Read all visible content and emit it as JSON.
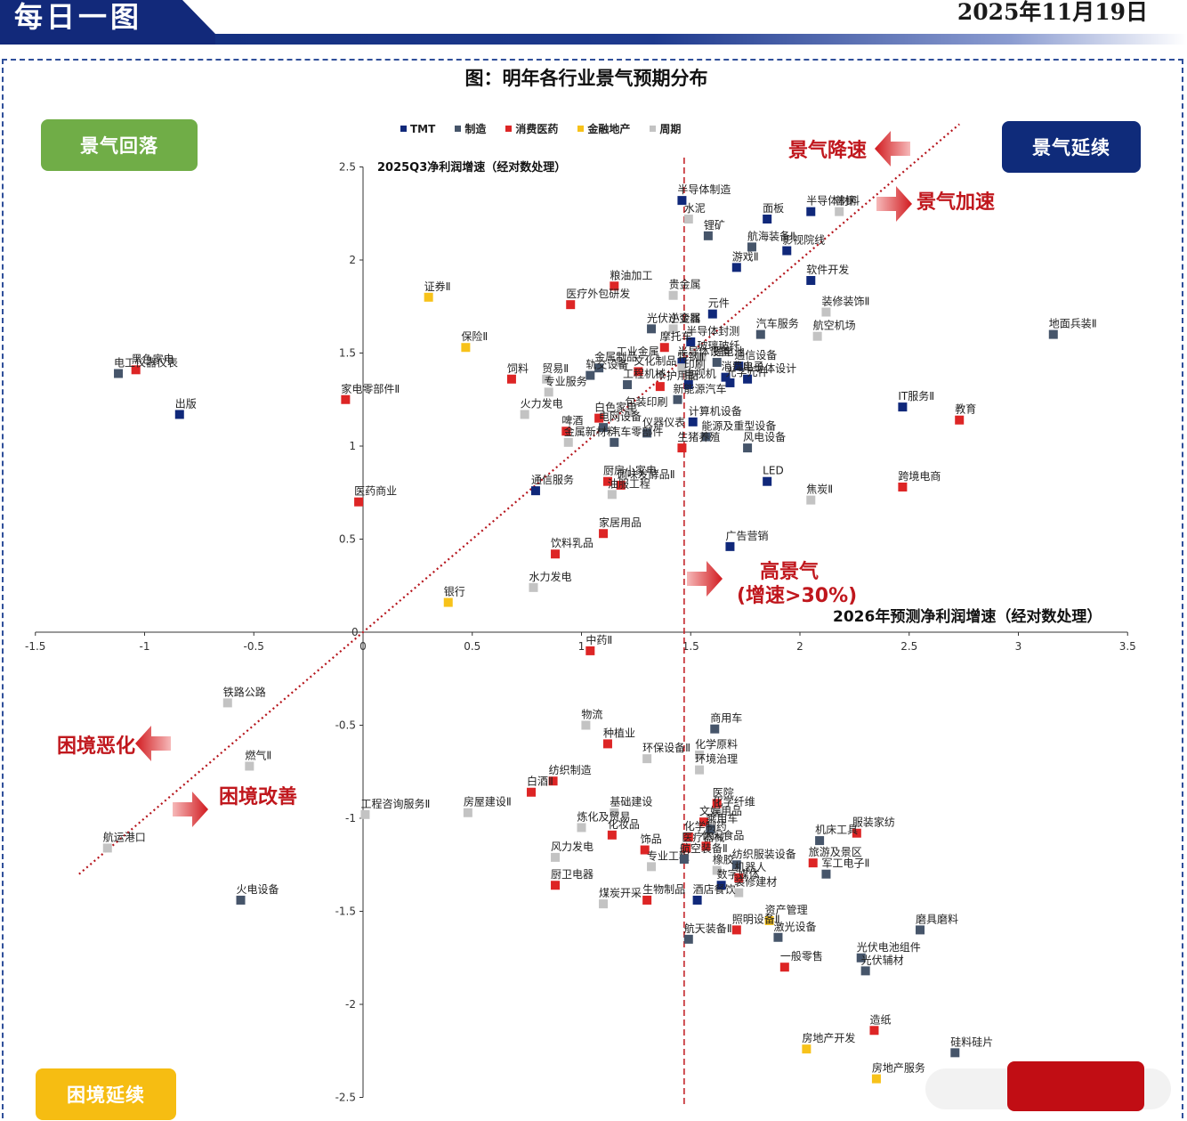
{
  "header": {
    "title": "每日一图",
    "date": "2025年11月19日"
  },
  "quadrants": {
    "top_left": "景气回落",
    "top_right": "景气延续",
    "bottom_left": "困境延续"
  },
  "annotations": {
    "slowdown": "景气降速",
    "accelerate": "景气加速",
    "high_line1": "高景气",
    "high_line2": "(增速>30%)",
    "worsen": "困境恶化",
    "improve": "困境改善"
  },
  "colors": {
    "TMT": "#10287a",
    "制造": "#46556a",
    "消费医药": "#dd2525",
    "金融地产": "#f7c21a",
    "周期": "#c3c3c3"
  },
  "chart_data": {
    "type": "scatter",
    "title": "图：明年各行业景气预期分布",
    "xlabel": "2026年预测净利润增速（经对数处理）",
    "ylabel": "2025Q3净利润增速（经对数处理）",
    "xlim": [
      -1.5,
      3.5
    ],
    "ylim": [
      -2.5,
      2.5
    ],
    "x_ticks": [
      -1.5,
      -1,
      -0.5,
      0,
      0.5,
      1,
      1.5,
      2,
      2.5,
      3,
      3.5
    ],
    "x_tick_labels": [
      "-1.5",
      "-1",
      "-0.5",
      "0",
      "0.5",
      "1",
      "1.5",
      "2",
      "2.5",
      "3",
      "3.5"
    ],
    "y_ticks": [
      -2.5,
      -2,
      -1.5,
      -1,
      -0.5,
      0.5,
      1,
      1.5,
      2,
      2.5
    ],
    "y_tick_labels": [
      "-2.5",
      "-2",
      "-1.5",
      "-1",
      "-0.5",
      "0.5",
      "1",
      "1.5",
      "2",
      "2.5"
    ],
    "origin_label": "0",
    "threshold_x": 1.47,
    "diagonal": true,
    "legend_position": "top-center",
    "legend": [
      "TMT",
      "制造",
      "消费医药",
      "金融地产",
      "周期"
    ],
    "points": [
      {
        "name": "半导体制造",
        "x": 1.46,
        "y": 2.32,
        "group": "TMT"
      },
      {
        "name": "水泥",
        "x": 1.49,
        "y": 2.22,
        "group": "周期"
      },
      {
        "name": "面板",
        "x": 1.85,
        "y": 2.22,
        "group": "TMT"
      },
      {
        "name": "半导体材料",
        "x": 2.05,
        "y": 2.26,
        "group": "TMT"
      },
      {
        "name": "普钢",
        "x": 2.18,
        "y": 2.26,
        "group": "周期"
      },
      {
        "name": "锂矿",
        "x": 1.58,
        "y": 2.13,
        "group": "制造"
      },
      {
        "name": "航海装备Ⅱ",
        "x": 1.78,
        "y": 2.07,
        "group": "制造"
      },
      {
        "name": "影视院线",
        "x": 1.94,
        "y": 2.05,
        "group": "TMT"
      },
      {
        "name": "游戏Ⅱ",
        "x": 1.71,
        "y": 1.96,
        "group": "TMT"
      },
      {
        "name": "软件开发",
        "x": 2.05,
        "y": 1.89,
        "group": "TMT"
      },
      {
        "name": "证券Ⅱ",
        "x": 0.3,
        "y": 1.8,
        "group": "金融地产"
      },
      {
        "name": "粮油加工",
        "x": 1.15,
        "y": 1.86,
        "group": "消费医药"
      },
      {
        "name": "医疗外包研发",
        "x": 0.95,
        "y": 1.76,
        "group": "消费医药"
      },
      {
        "name": "贵金属",
        "x": 1.42,
        "y": 1.81,
        "group": "周期"
      },
      {
        "name": "元件",
        "x": 1.6,
        "y": 1.71,
        "group": "TMT"
      },
      {
        "name": "装修装饰Ⅱ",
        "x": 2.12,
        "y": 1.72,
        "group": "周期"
      },
      {
        "name": "光伏逆变器",
        "x": 1.32,
        "y": 1.63,
        "group": "制造"
      },
      {
        "name": "小金属",
        "x": 1.42,
        "y": 1.63,
        "group": "周期"
      },
      {
        "name": "汽车服务",
        "x": 1.82,
        "y": 1.6,
        "group": "制造"
      },
      {
        "name": "地面兵装Ⅱ",
        "x": 3.16,
        "y": 1.6,
        "group": "制造"
      },
      {
        "name": "航空机场",
        "x": 2.08,
        "y": 1.59,
        "group": "周期"
      },
      {
        "name": "半导体封测",
        "x": 1.5,
        "y": 1.56,
        "group": "TMT"
      },
      {
        "name": "摩托车",
        "x": 1.38,
        "y": 1.53,
        "group": "消费医药"
      },
      {
        "name": "保险Ⅱ",
        "x": 0.47,
        "y": 1.53,
        "group": "金融地产"
      },
      {
        "name": "玻璃玻纤",
        "x": 1.55,
        "y": 1.48,
        "group": "周期"
      },
      {
        "name": "工业金属",
        "x": 1.18,
        "y": 1.45,
        "group": "周期"
      },
      {
        "name": "半导体设备",
        "x": 1.46,
        "y": 1.45,
        "group": "TMT"
      },
      {
        "name": "锂电池",
        "x": 1.62,
        "y": 1.45,
        "group": "制造"
      },
      {
        "name": "黑色家电",
        "x": -1.04,
        "y": 1.41,
        "group": "消费医药"
      },
      {
        "name": "电工仪器仪表",
        "x": -1.12,
        "y": 1.39,
        "group": "制造"
      },
      {
        "name": "金属制品",
        "x": 1.08,
        "y": 1.42,
        "group": "制造"
      },
      {
        "name": "通信设备",
        "x": 1.72,
        "y": 1.43,
        "group": "TMT"
      },
      {
        "name": "文化制品",
        "x": 1.26,
        "y": 1.4,
        "group": "消费医药"
      },
      {
        "name": "特钢Ⅱ",
        "x": 1.46,
        "y": 1.42,
        "group": "周期"
      },
      {
        "name": "贸易Ⅱ",
        "x": 0.84,
        "y": 1.36,
        "group": "周期"
      },
      {
        "name": "饲料",
        "x": 0.68,
        "y": 1.36,
        "group": "消费医药"
      },
      {
        "name": "轨交设备",
        "x": 1.04,
        "y": 1.38,
        "group": "制造"
      },
      {
        "name": "印刷",
        "x": 1.49,
        "y": 1.38,
        "group": "周期"
      },
      {
        "name": "消费电子",
        "x": 1.66,
        "y": 1.37,
        "group": "TMT"
      },
      {
        "name": "半导体设计",
        "x": 1.76,
        "y": 1.36,
        "group": "TMT"
      },
      {
        "name": "光学元件",
        "x": 1.68,
        "y": 1.34,
        "group": "TMT"
      },
      {
        "name": "工程机械",
        "x": 1.21,
        "y": 1.33,
        "group": "制造"
      },
      {
        "name": "个护用品",
        "x": 1.36,
        "y": 1.32,
        "group": "消费医药"
      },
      {
        "name": "家电零部件Ⅱ",
        "x": -0.08,
        "y": 1.25,
        "group": "消费医药"
      },
      {
        "name": "专业服务",
        "x": 0.85,
        "y": 1.29,
        "group": "周期"
      },
      {
        "name": "电视机",
        "x": 1.49,
        "y": 1.33,
        "group": "TMT"
      },
      {
        "name": "IT服务Ⅱ",
        "x": 2.47,
        "y": 1.21,
        "group": "TMT"
      },
      {
        "name": "包装印刷",
        "x": 1.22,
        "y": 1.18,
        "group": "周期"
      },
      {
        "name": "新能源汽车",
        "x": 1.44,
        "y": 1.25,
        "group": "制造"
      },
      {
        "name": "出版",
        "x": -0.84,
        "y": 1.17,
        "group": "TMT"
      },
      {
        "name": "火力发电",
        "x": 0.74,
        "y": 1.17,
        "group": "周期"
      },
      {
        "name": "白色家电",
        "x": 1.08,
        "y": 1.15,
        "group": "消费医药"
      },
      {
        "name": "教育",
        "x": 2.73,
        "y": 1.14,
        "group": "消费医药"
      },
      {
        "name": "啤酒",
        "x": 0.93,
        "y": 1.08,
        "group": "消费医药"
      },
      {
        "name": "电网设备",
        "x": 1.1,
        "y": 1.1,
        "group": "制造"
      },
      {
        "name": "仪器仪表",
        "x": 1.3,
        "y": 1.07,
        "group": "制造"
      },
      {
        "name": "计算机设备",
        "x": 1.51,
        "y": 1.13,
        "group": "TMT"
      },
      {
        "name": "能源及重型设备",
        "x": 1.57,
        "y": 1.05,
        "group": "制造"
      },
      {
        "name": "汽车零部件",
        "x": 1.15,
        "y": 1.02,
        "group": "制造"
      },
      {
        "name": "金属新材料",
        "x": 0.94,
        "y": 1.02,
        "group": "周期"
      },
      {
        "name": "风电设备",
        "x": 1.76,
        "y": 0.99,
        "group": "制造"
      },
      {
        "name": "生猪养殖",
        "x": 1.46,
        "y": 0.99,
        "group": "消费医药"
      },
      {
        "name": "LED",
        "x": 1.85,
        "y": 0.81,
        "group": "TMT"
      },
      {
        "name": "跨境电商",
        "x": 2.47,
        "y": 0.78,
        "group": "消费医药"
      },
      {
        "name": "厨房小家电",
        "x": 1.12,
        "y": 0.81,
        "group": "消费医药"
      },
      {
        "name": "调味发酵品Ⅱ",
        "x": 1.18,
        "y": 0.79,
        "group": "消费医药"
      },
      {
        "name": "医药商业",
        "x": -0.02,
        "y": 0.7,
        "group": "消费医药"
      },
      {
        "name": "通信服务",
        "x": 0.79,
        "y": 0.76,
        "group": "TMT"
      },
      {
        "name": "油服工程",
        "x": 1.14,
        "y": 0.74,
        "group": "周期"
      },
      {
        "name": "焦炭Ⅱ",
        "x": 2.05,
        "y": 0.71,
        "group": "周期"
      },
      {
        "name": "家居用品",
        "x": 1.1,
        "y": 0.53,
        "group": "消费医药"
      },
      {
        "name": "饮料乳品",
        "x": 0.88,
        "y": 0.42,
        "group": "消费医药"
      },
      {
        "name": "广告营销",
        "x": 1.68,
        "y": 0.46,
        "group": "TMT"
      },
      {
        "name": "水力发电",
        "x": 0.78,
        "y": 0.24,
        "group": "周期"
      },
      {
        "name": "银行",
        "x": 0.39,
        "y": 0.16,
        "group": "金融地产"
      },
      {
        "name": "中药Ⅱ",
        "x": 1.04,
        "y": -0.1,
        "group": "消费医药"
      },
      {
        "name": "铁路公路",
        "x": -0.62,
        "y": -0.38,
        "group": "周期"
      },
      {
        "name": "物流",
        "x": 1.02,
        "y": -0.5,
        "group": "周期"
      },
      {
        "name": "商用车",
        "x": 1.61,
        "y": -0.52,
        "group": "制造"
      },
      {
        "name": "种植业",
        "x": 1.12,
        "y": -0.6,
        "group": "消费医药"
      },
      {
        "name": "环保设备Ⅱ",
        "x": 1.3,
        "y": -0.68,
        "group": "周期"
      },
      {
        "name": "化学原料",
        "x": 1.54,
        "y": -0.66,
        "group": "周期"
      },
      {
        "name": "燃气Ⅱ",
        "x": -0.52,
        "y": -0.72,
        "group": "周期"
      },
      {
        "name": "环境治理",
        "x": 1.54,
        "y": -0.74,
        "group": "周期"
      },
      {
        "name": "纺织制造",
        "x": 0.87,
        "y": -0.8,
        "group": "消费医药"
      },
      {
        "name": "白酒Ⅱ",
        "x": 0.77,
        "y": -0.86,
        "group": "消费医药"
      },
      {
        "name": "工程咨询服务Ⅱ",
        "x": 0.01,
        "y": -0.98,
        "group": "周期"
      },
      {
        "name": "房屋建设Ⅱ",
        "x": 0.48,
        "y": -0.97,
        "group": "周期"
      },
      {
        "name": "基础建设",
        "x": 1.15,
        "y": -0.97,
        "group": "周期"
      },
      {
        "name": "医院",
        "x": 1.62,
        "y": -0.92,
        "group": "消费医药"
      },
      {
        "name": "化学纤维",
        "x": 1.62,
        "y": -0.97,
        "group": "周期"
      },
      {
        "name": "服装家纺",
        "x": 2.26,
        "y": -1.08,
        "group": "消费医药"
      },
      {
        "name": "炼化及贸易",
        "x": 1.0,
        "y": -1.05,
        "group": "周期"
      },
      {
        "name": "文娱用品",
        "x": 1.56,
        "y": -1.02,
        "group": "消费医药"
      },
      {
        "name": "乘用车",
        "x": 1.59,
        "y": -1.06,
        "group": "制造"
      },
      {
        "name": "化学制药",
        "x": 1.49,
        "y": -1.1,
        "group": "消费医药"
      },
      {
        "name": "化妆品",
        "x": 1.14,
        "y": -1.09,
        "group": "消费医药"
      },
      {
        "name": "机床工具",
        "x": 2.09,
        "y": -1.12,
        "group": "制造"
      },
      {
        "name": "航运港口",
        "x": -1.17,
        "y": -1.16,
        "group": "周期"
      },
      {
        "name": "风力发电",
        "x": 0.88,
        "y": -1.21,
        "group": "周期"
      },
      {
        "name": "饰品",
        "x": 1.29,
        "y": -1.17,
        "group": "消费医药"
      },
      {
        "name": "医疗器械",
        "x": 1.48,
        "y": -1.16,
        "group": "消费医药"
      },
      {
        "name": "休闲食品",
        "x": 1.57,
        "y": -1.15,
        "group": "消费医药"
      },
      {
        "name": "旅游及景区",
        "x": 2.06,
        "y": -1.24,
        "group": "消费医药"
      },
      {
        "name": "纺织服装设备",
        "x": 1.71,
        "y": -1.25,
        "group": "制造"
      },
      {
        "name": "专业工程",
        "x": 1.32,
        "y": -1.26,
        "group": "周期"
      },
      {
        "name": "航空装备Ⅱ",
        "x": 1.47,
        "y": -1.22,
        "group": "制造"
      },
      {
        "name": "军工电子Ⅱ",
        "x": 2.12,
        "y": -1.3,
        "group": "制造"
      },
      {
        "name": "橡胶",
        "x": 1.62,
        "y": -1.28,
        "group": "周期"
      },
      {
        "name": "机器人",
        "x": 1.72,
        "y": -1.32,
        "group": "消费医药"
      },
      {
        "name": "数字媒体",
        "x": 1.64,
        "y": -1.36,
        "group": "TMT"
      },
      {
        "name": "装修建材",
        "x": 1.72,
        "y": -1.4,
        "group": "周期"
      },
      {
        "name": "火电设备",
        "x": -0.56,
        "y": -1.44,
        "group": "制造"
      },
      {
        "name": "厨卫电器",
        "x": 0.88,
        "y": -1.36,
        "group": "消费医药"
      },
      {
        "name": "煤炭开采",
        "x": 1.1,
        "y": -1.46,
        "group": "周期"
      },
      {
        "name": "生物制品",
        "x": 1.3,
        "y": -1.44,
        "group": "消费医药"
      },
      {
        "name": "酒店餐饮",
        "x": 1.53,
        "y": -1.44,
        "group": "TMT"
      },
      {
        "name": "资产管理",
        "x": 1.86,
        "y": -1.55,
        "group": "金融地产"
      },
      {
        "name": "照明设备Ⅱ",
        "x": 1.71,
        "y": -1.6,
        "group": "消费医药"
      },
      {
        "name": "磨具磨料",
        "x": 2.55,
        "y": -1.6,
        "group": "制造"
      },
      {
        "name": "航天装备Ⅱ",
        "x": 1.49,
        "y": -1.65,
        "group": "制造"
      },
      {
        "name": "激光设备",
        "x": 1.9,
        "y": -1.64,
        "group": "制造"
      },
      {
        "name": "光伏电池组件",
        "x": 2.28,
        "y": -1.75,
        "group": "制造"
      },
      {
        "name": "一般零售",
        "x": 1.93,
        "y": -1.8,
        "group": "消费医药"
      },
      {
        "name": "光伏辅材",
        "x": 2.3,
        "y": -1.82,
        "group": "制造"
      },
      {
        "name": "造纸",
        "x": 2.34,
        "y": -2.14,
        "group": "消费医药"
      },
      {
        "name": "硅料硅片",
        "x": 2.71,
        "y": -2.26,
        "group": "制造"
      },
      {
        "name": "房地产开发",
        "x": 2.03,
        "y": -2.24,
        "group": "金融地产"
      },
      {
        "name": "房地产服务",
        "x": 2.35,
        "y": -2.4,
        "group": "金融地产"
      }
    ]
  }
}
